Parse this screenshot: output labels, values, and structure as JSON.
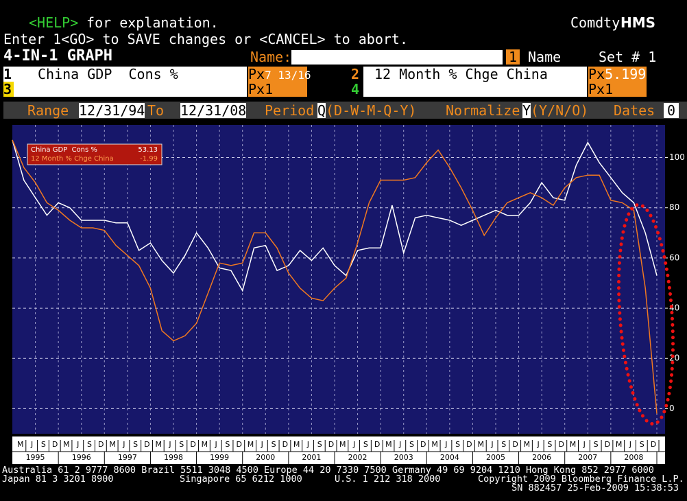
{
  "header": {
    "help_key": "<HELP>",
    "help_text": " for explanation.",
    "brand_prefix": "Comdty",
    "brand": "HMS",
    "instruction": "Enter 1<GO> to SAVE changes or <CANCEL> to abort.",
    "screen_title": "4-IN-1 GRAPH",
    "name_label": "Name:",
    "name_number": "1",
    "name_caption": "Name",
    "set_label": "Set # 1"
  },
  "fields": [
    {
      "number": "1",
      "name": "China GDP  Cons %",
      "px_label": "Px",
      "px_value": "7 13/16"
    },
    {
      "number": "2",
      "name": "12 Month % Chge China",
      "px_label": "Px",
      "px_value": "5.199"
    },
    {
      "number": "3",
      "name": "",
      "px_label": "Px",
      "px_value": "1"
    },
    {
      "number": "4",
      "name": "",
      "px_label": "Px",
      "px_value": "1"
    }
  ],
  "range_bar": {
    "range_label": "Range",
    "from": "12/31/94",
    "to_label": "To",
    "to": "12/31/08",
    "period_label": "Period",
    "period_value": "Q",
    "period_options": "(D-W-M-Q-Y)",
    "normalize_label": "Normalize",
    "normalize_value": "Y",
    "normalize_options": "(Y/N/O)",
    "dates_label": "Dates",
    "dates_value": "0"
  },
  "chart_data": {
    "type": "line",
    "ylim": [
      -10,
      113
    ],
    "yticks": [
      0,
      20,
      40,
      60,
      80,
      100
    ],
    "grid": true,
    "months": [
      "M",
      "J",
      "S",
      "D"
    ],
    "years": [
      "1995",
      "1996",
      "1997",
      "1998",
      "1999",
      "2000",
      "2001",
      "2002",
      "2003",
      "2004",
      "2005",
      "2006",
      "2007",
      "2008"
    ],
    "series": [
      {
        "name": "China GDP  Cons %",
        "color": "#ffffff",
        "last_value": 53.13,
        "values": [
          107,
          91,
          84,
          77,
          82,
          80,
          75,
          75,
          75,
          74,
          74,
          63,
          66,
          59,
          54,
          61,
          70,
          64,
          56,
          55,
          47,
          64,
          65,
          55,
          57,
          63,
          59,
          64,
          57,
          53,
          63,
          64,
          64,
          81,
          62,
          76,
          77,
          76,
          75,
          73,
          75,
          77,
          79,
          77,
          77,
          82,
          90,
          84,
          83,
          97,
          106,
          98,
          92,
          86,
          82,
          70,
          53
        ]
      },
      {
        "name": "12 Month % Chge China",
        "color": "#f07820",
        "last_value": -1.99,
        "values": [
          107,
          96,
          90,
          82,
          79,
          75,
          72,
          72,
          71,
          65,
          61,
          57,
          48,
          31,
          27,
          29,
          34,
          46,
          58,
          57,
          58,
          70,
          70,
          64,
          54,
          48,
          44,
          43,
          48,
          52,
          66,
          82,
          91,
          91,
          91,
          92,
          98,
          103,
          96,
          88,
          79,
          69,
          76,
          82,
          84,
          86,
          84,
          81,
          88,
          92,
          93,
          93,
          83,
          82,
          79,
          48,
          -2
        ]
      }
    ]
  },
  "footer": {
    "line1": "Australia 61 2 9777 8600 Brazil 5511 3048 4500 Europe 44 20 7330 7500 Germany 49 69 9204 1210 Hong Kong 852 2977 6000",
    "japan": "Japan 81 3 3201 8900",
    "singapore": "Singapore 65 6212 1000",
    "us": "U.S. 1 212 318 2000",
    "copyright": "Copyright 2009 Bloomberg Finance L.P.",
    "stamp": "SN 882457 25-Feb-2009 15:38:53"
  }
}
